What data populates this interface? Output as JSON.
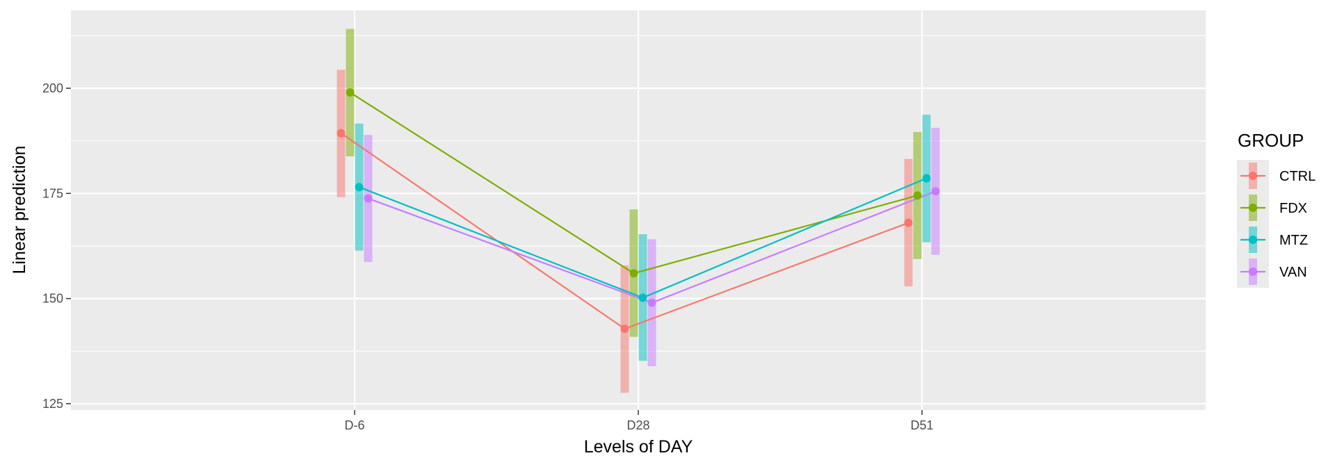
{
  "chart_data": {
    "type": "line",
    "title": "",
    "xlabel": "Levels of DAY",
    "ylabel": "Linear prediction",
    "categories": [
      "D-6",
      "D28",
      "D51"
    ],
    "ylim": [
      123.5,
      218.5
    ],
    "yticks": [
      125,
      150,
      175,
      200
    ],
    "grid": true,
    "legend": {
      "title": "GROUP",
      "position": "right"
    },
    "series": [
      {
        "name": "CTRL",
        "color": "#F8766D",
        "values": [
          189.3,
          142.8,
          168.0
        ],
        "lower": [
          174.1,
          127.6,
          152.9
        ],
        "upper": [
          204.4,
          157.9,
          183.2
        ]
      },
      {
        "name": "FDX",
        "color": "#7CAE00",
        "values": [
          199.0,
          156.0,
          174.5
        ],
        "lower": [
          183.8,
          140.9,
          159.4
        ],
        "upper": [
          214.1,
          171.2,
          189.6
        ]
      },
      {
        "name": "MTZ",
        "color": "#00BFC4",
        "values": [
          176.5,
          150.2,
          178.6
        ],
        "lower": [
          161.4,
          135.2,
          163.4
        ],
        "upper": [
          191.6,
          165.3,
          193.7
        ]
      },
      {
        "name": "VAN",
        "color": "#C77CFF",
        "values": [
          173.8,
          149.0,
          175.5
        ],
        "lower": [
          158.7,
          133.9,
          160.4
        ],
        "upper": [
          188.9,
          164.1,
          190.6
        ]
      }
    ]
  }
}
